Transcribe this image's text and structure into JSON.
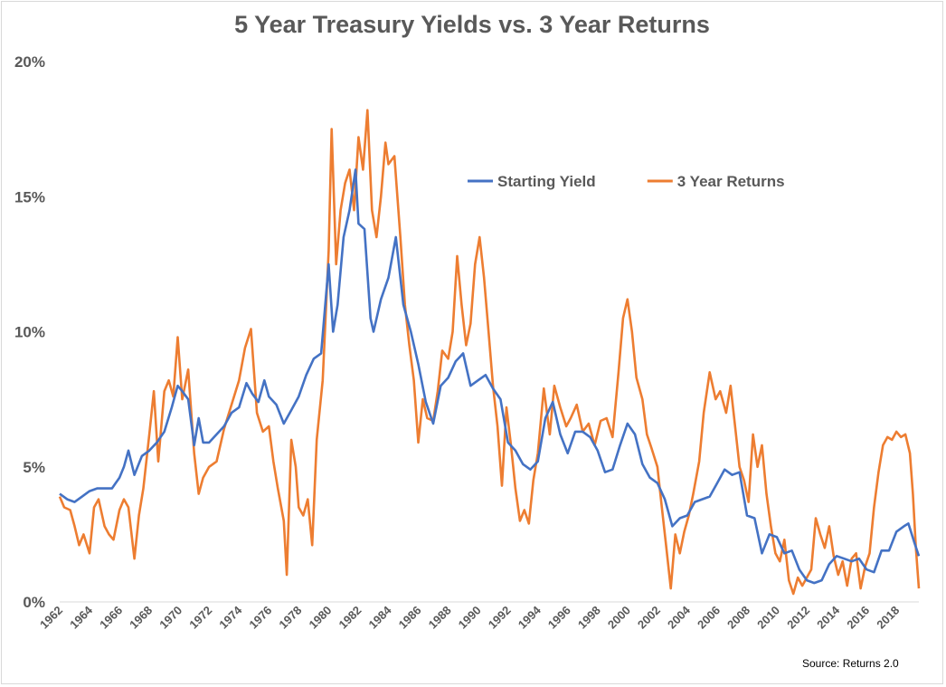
{
  "chart_data": {
    "type": "line",
    "title": "5 Year Treasury Yields vs. 3 Year Returns",
    "source": "Source: Returns 2.0",
    "xlabel": "",
    "ylabel": "",
    "xlim": [
      1962,
      2019.5
    ],
    "ylim": [
      0,
      20
    ],
    "y_ticks": [
      "0%",
      "5%",
      "10%",
      "15%",
      "20%"
    ],
    "x_ticks": [
      "1962",
      "1964",
      "1966",
      "1968",
      "1970",
      "1972",
      "1974",
      "1976",
      "1978",
      "1980",
      "1982",
      "1984",
      "1986",
      "1988",
      "1990",
      "1992",
      "1994",
      "1996",
      "1998",
      "2000",
      "2002",
      "2004",
      "2006",
      "2008",
      "2010",
      "2012",
      "2014",
      "2016",
      "2018"
    ],
    "grid": false,
    "legend_position": "top-right",
    "colors": {
      "starting_yield": "#4472c4",
      "three_year_returns": "#ed7d31"
    },
    "series": [
      {
        "name": "Starting Yield",
        "color": "#4472c4",
        "points": [
          [
            1962.0,
            4.0
          ],
          [
            1962.5,
            3.8
          ],
          [
            1963.0,
            3.7
          ],
          [
            1963.5,
            3.9
          ],
          [
            1964.0,
            4.1
          ],
          [
            1964.5,
            4.2
          ],
          [
            1965.0,
            4.2
          ],
          [
            1965.5,
            4.2
          ],
          [
            1966.0,
            4.6
          ],
          [
            1966.3,
            5.0
          ],
          [
            1966.6,
            5.6
          ],
          [
            1967.0,
            4.7
          ],
          [
            1967.5,
            5.4
          ],
          [
            1968.0,
            5.6
          ],
          [
            1968.5,
            5.9
          ],
          [
            1969.0,
            6.3
          ],
          [
            1969.5,
            7.2
          ],
          [
            1969.9,
            8.0
          ],
          [
            1970.2,
            7.8
          ],
          [
            1970.6,
            7.5
          ],
          [
            1971.0,
            5.8
          ],
          [
            1971.3,
            6.8
          ],
          [
            1971.6,
            5.9
          ],
          [
            1972.0,
            5.9
          ],
          [
            1972.5,
            6.2
          ],
          [
            1973.0,
            6.5
          ],
          [
            1973.5,
            7.0
          ],
          [
            1974.0,
            7.2
          ],
          [
            1974.5,
            8.1
          ],
          [
            1974.9,
            7.7
          ],
          [
            1975.3,
            7.4
          ],
          [
            1975.7,
            8.2
          ],
          [
            1976.0,
            7.6
          ],
          [
            1976.5,
            7.3
          ],
          [
            1977.0,
            6.6
          ],
          [
            1977.5,
            7.1
          ],
          [
            1978.0,
            7.6
          ],
          [
            1978.5,
            8.4
          ],
          [
            1979.0,
            9.0
          ],
          [
            1979.5,
            9.2
          ],
          [
            1980.0,
            12.5
          ],
          [
            1980.3,
            10.0
          ],
          [
            1980.6,
            11.0
          ],
          [
            1981.0,
            13.5
          ],
          [
            1981.4,
            14.5
          ],
          [
            1981.8,
            16.0
          ],
          [
            1982.0,
            14.0
          ],
          [
            1982.4,
            13.8
          ],
          [
            1982.8,
            10.5
          ],
          [
            1983.0,
            10.0
          ],
          [
            1983.5,
            11.2
          ],
          [
            1984.0,
            12.0
          ],
          [
            1984.5,
            13.5
          ],
          [
            1985.0,
            11.0
          ],
          [
            1985.5,
            10.0
          ],
          [
            1986.0,
            8.8
          ],
          [
            1986.5,
            7.4
          ],
          [
            1987.0,
            6.6
          ],
          [
            1987.5,
            8.0
          ],
          [
            1988.0,
            8.3
          ],
          [
            1988.5,
            8.9
          ],
          [
            1989.0,
            9.2
          ],
          [
            1989.5,
            8.0
          ],
          [
            1990.0,
            8.2
          ],
          [
            1990.5,
            8.4
          ],
          [
            1991.0,
            7.9
          ],
          [
            1991.5,
            7.5
          ],
          [
            1992.0,
            5.9
          ],
          [
            1992.5,
            5.6
          ],
          [
            1993.0,
            5.1
          ],
          [
            1993.5,
            4.9
          ],
          [
            1994.0,
            5.2
          ],
          [
            1994.5,
            6.8
          ],
          [
            1995.0,
            7.4
          ],
          [
            1995.5,
            6.2
          ],
          [
            1996.0,
            5.5
          ],
          [
            1996.5,
            6.3
          ],
          [
            1997.0,
            6.3
          ],
          [
            1997.5,
            6.1
          ],
          [
            1998.0,
            5.6
          ],
          [
            1998.5,
            4.8
          ],
          [
            1999.0,
            4.9
          ],
          [
            1999.5,
            5.8
          ],
          [
            2000.0,
            6.6
          ],
          [
            2000.5,
            6.2
          ],
          [
            2001.0,
            5.1
          ],
          [
            2001.5,
            4.6
          ],
          [
            2002.0,
            4.4
          ],
          [
            2002.5,
            3.8
          ],
          [
            2003.0,
            2.8
          ],
          [
            2003.5,
            3.1
          ],
          [
            2004.0,
            3.2
          ],
          [
            2004.5,
            3.7
          ],
          [
            2005.0,
            3.8
          ],
          [
            2005.5,
            3.9
          ],
          [
            2006.0,
            4.4
          ],
          [
            2006.5,
            4.9
          ],
          [
            2007.0,
            4.7
          ],
          [
            2007.5,
            4.8
          ],
          [
            2008.0,
            3.2
          ],
          [
            2008.5,
            3.1
          ],
          [
            2009.0,
            1.8
          ],
          [
            2009.5,
            2.5
          ],
          [
            2010.0,
            2.4
          ],
          [
            2010.5,
            1.8
          ],
          [
            2011.0,
            1.9
          ],
          [
            2011.5,
            1.2
          ],
          [
            2012.0,
            0.8
          ],
          [
            2012.5,
            0.7
          ],
          [
            2013.0,
            0.8
          ],
          [
            2013.5,
            1.4
          ],
          [
            2014.0,
            1.7
          ],
          [
            2014.5,
            1.6
          ],
          [
            2015.0,
            1.5
          ],
          [
            2015.5,
            1.6
          ],
          [
            2016.0,
            1.2
          ],
          [
            2016.5,
            1.1
          ],
          [
            2017.0,
            1.9
          ],
          [
            2017.5,
            1.9
          ],
          [
            2018.0,
            2.6
          ],
          [
            2018.5,
            2.8
          ],
          [
            2018.8,
            2.9
          ],
          [
            2019.2,
            2.2
          ],
          [
            2019.5,
            1.7
          ]
        ]
      },
      {
        "name": "3 Year Returns",
        "color": "#ed7d31",
        "points": [
          [
            1962.0,
            3.9
          ],
          [
            1962.3,
            3.5
          ],
          [
            1962.7,
            3.4
          ],
          [
            1963.0,
            2.8
          ],
          [
            1963.3,
            2.1
          ],
          [
            1963.6,
            2.5
          ],
          [
            1964.0,
            1.8
          ],
          [
            1964.3,
            3.5
          ],
          [
            1964.6,
            3.8
          ],
          [
            1965.0,
            2.8
          ],
          [
            1965.3,
            2.5
          ],
          [
            1965.6,
            2.3
          ],
          [
            1966.0,
            3.4
          ],
          [
            1966.3,
            3.8
          ],
          [
            1966.6,
            3.5
          ],
          [
            1967.0,
            1.6
          ],
          [
            1967.3,
            3.2
          ],
          [
            1967.6,
            4.2
          ],
          [
            1968.0,
            6.2
          ],
          [
            1968.3,
            7.8
          ],
          [
            1968.6,
            5.2
          ],
          [
            1969.0,
            7.8
          ],
          [
            1969.3,
            8.2
          ],
          [
            1969.6,
            7.6
          ],
          [
            1969.9,
            9.8
          ],
          [
            1970.2,
            7.5
          ],
          [
            1970.6,
            8.6
          ],
          [
            1971.0,
            5.5
          ],
          [
            1971.3,
            4.0
          ],
          [
            1971.6,
            4.6
          ],
          [
            1972.0,
            5.0
          ],
          [
            1972.5,
            5.2
          ],
          [
            1973.0,
            6.4
          ],
          [
            1973.5,
            7.3
          ],
          [
            1974.0,
            8.2
          ],
          [
            1974.4,
            9.4
          ],
          [
            1974.8,
            10.1
          ],
          [
            1975.2,
            7.0
          ],
          [
            1975.6,
            6.3
          ],
          [
            1976.0,
            6.5
          ],
          [
            1976.3,
            5.2
          ],
          [
            1976.6,
            4.2
          ],
          [
            1977.0,
            3.0
          ],
          [
            1977.2,
            1.0
          ],
          [
            1977.5,
            6.0
          ],
          [
            1977.8,
            5.0
          ],
          [
            1978.0,
            3.5
          ],
          [
            1978.3,
            3.2
          ],
          [
            1978.6,
            3.8
          ],
          [
            1978.9,
            2.1
          ],
          [
            1979.2,
            6.0
          ],
          [
            1979.6,
            8.2
          ],
          [
            1980.0,
            13.0
          ],
          [
            1980.2,
            17.5
          ],
          [
            1980.5,
            12.5
          ],
          [
            1980.8,
            14.5
          ],
          [
            1981.1,
            15.5
          ],
          [
            1981.4,
            16.0
          ],
          [
            1981.7,
            14.5
          ],
          [
            1982.0,
            17.2
          ],
          [
            1982.3,
            16.0
          ],
          [
            1982.6,
            18.2
          ],
          [
            1982.9,
            14.5
          ],
          [
            1983.2,
            13.5
          ],
          [
            1983.5,
            15.0
          ],
          [
            1983.8,
            17.0
          ],
          [
            1984.0,
            16.2
          ],
          [
            1984.4,
            16.5
          ],
          [
            1984.8,
            13.5
          ],
          [
            1985.1,
            11.0
          ],
          [
            1985.4,
            9.5
          ],
          [
            1985.7,
            8.2
          ],
          [
            1986.0,
            5.9
          ],
          [
            1986.3,
            7.5
          ],
          [
            1986.6,
            6.8
          ],
          [
            1987.0,
            6.7
          ],
          [
            1987.3,
            7.8
          ],
          [
            1987.6,
            9.3
          ],
          [
            1988.0,
            9.0
          ],
          [
            1988.3,
            10.0
          ],
          [
            1988.6,
            12.8
          ],
          [
            1988.9,
            11.0
          ],
          [
            1989.2,
            9.5
          ],
          [
            1989.5,
            10.3
          ],
          [
            1989.8,
            12.5
          ],
          [
            1990.1,
            13.5
          ],
          [
            1990.4,
            12.0
          ],
          [
            1990.7,
            10.0
          ],
          [
            1991.0,
            8.0
          ],
          [
            1991.3,
            6.5
          ],
          [
            1991.6,
            4.3
          ],
          [
            1991.9,
            7.2
          ],
          [
            1992.2,
            5.8
          ],
          [
            1992.5,
            4.2
          ],
          [
            1992.8,
            3.0
          ],
          [
            1993.1,
            3.4
          ],
          [
            1993.4,
            2.9
          ],
          [
            1993.7,
            4.5
          ],
          [
            1994.0,
            5.5
          ],
          [
            1994.4,
            7.9
          ],
          [
            1994.8,
            6.2
          ],
          [
            1995.1,
            8.0
          ],
          [
            1995.5,
            7.2
          ],
          [
            1995.9,
            6.5
          ],
          [
            1996.2,
            6.8
          ],
          [
            1996.6,
            7.3
          ],
          [
            1997.0,
            6.3
          ],
          [
            1997.4,
            6.6
          ],
          [
            1997.8,
            5.8
          ],
          [
            1998.2,
            6.7
          ],
          [
            1998.6,
            6.8
          ],
          [
            1999.0,
            6.1
          ],
          [
            1999.4,
            8.5
          ],
          [
            1999.7,
            10.5
          ],
          [
            2000.0,
            11.2
          ],
          [
            2000.3,
            10.0
          ],
          [
            2000.6,
            8.3
          ],
          [
            2001.0,
            7.5
          ],
          [
            2001.3,
            6.2
          ],
          [
            2001.6,
            5.7
          ],
          [
            2002.0,
            5.0
          ],
          [
            2002.3,
            3.5
          ],
          [
            2002.6,
            2.0
          ],
          [
            2002.9,
            0.5
          ],
          [
            2003.2,
            2.5
          ],
          [
            2003.5,
            1.8
          ],
          [
            2003.8,
            2.6
          ],
          [
            2004.1,
            3.2
          ],
          [
            2004.4,
            4.0
          ],
          [
            2004.8,
            5.2
          ],
          [
            2005.1,
            7.0
          ],
          [
            2005.5,
            8.5
          ],
          [
            2005.9,
            7.5
          ],
          [
            2006.2,
            7.8
          ],
          [
            2006.6,
            7.0
          ],
          [
            2006.9,
            8.0
          ],
          [
            2007.2,
            6.5
          ],
          [
            2007.5,
            5.0
          ],
          [
            2007.8,
            4.5
          ],
          [
            2008.1,
            3.7
          ],
          [
            2008.4,
            6.2
          ],
          [
            2008.7,
            5.0
          ],
          [
            2009.0,
            5.8
          ],
          [
            2009.3,
            4.0
          ],
          [
            2009.6,
            2.8
          ],
          [
            2009.9,
            1.8
          ],
          [
            2010.2,
            1.5
          ],
          [
            2010.5,
            2.3
          ],
          [
            2010.8,
            0.8
          ],
          [
            2011.1,
            0.3
          ],
          [
            2011.4,
            0.9
          ],
          [
            2011.7,
            0.6
          ],
          [
            2012.0,
            0.9
          ],
          [
            2012.3,
            1.2
          ],
          [
            2012.6,
            3.1
          ],
          [
            2012.9,
            2.5
          ],
          [
            2013.2,
            2.0
          ],
          [
            2013.5,
            2.8
          ],
          [
            2013.8,
            1.7
          ],
          [
            2014.1,
            1.0
          ],
          [
            2014.4,
            1.5
          ],
          [
            2014.7,
            0.6
          ],
          [
            2015.0,
            1.6
          ],
          [
            2015.3,
            1.8
          ],
          [
            2015.6,
            0.5
          ],
          [
            2015.9,
            1.3
          ],
          [
            2016.2,
            1.8
          ],
          [
            2016.5,
            3.5
          ],
          [
            2016.8,
            4.8
          ],
          [
            2017.1,
            5.8
          ],
          [
            2017.4,
            6.1
          ],
          [
            2017.7,
            6.0
          ],
          [
            2018.0,
            6.3
          ],
          [
            2018.3,
            6.1
          ],
          [
            2018.6,
            6.2
          ],
          [
            2018.9,
            5.5
          ],
          [
            2019.1,
            4.0
          ],
          [
            2019.3,
            2.0
          ],
          [
            2019.5,
            0.5
          ]
        ]
      }
    ]
  }
}
